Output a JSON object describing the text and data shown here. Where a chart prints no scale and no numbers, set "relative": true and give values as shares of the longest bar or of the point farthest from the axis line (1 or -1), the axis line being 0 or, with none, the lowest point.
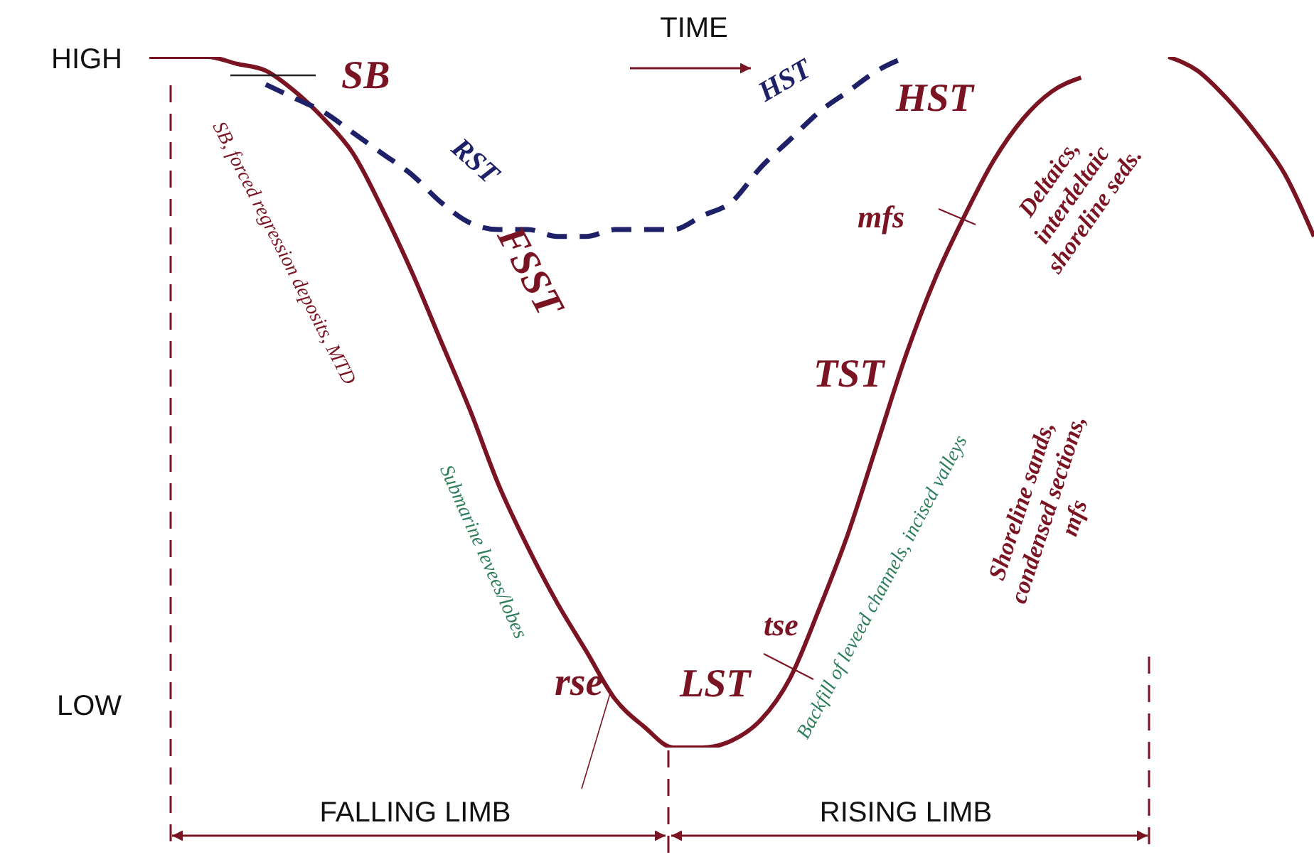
{
  "chart_data": {
    "type": "line",
    "relative": true,
    "xlabel": "TIME",
    "categories": [
      null,
      null,
      null,
      null,
      null,
      null,
      null,
      null,
      null,
      null,
      null,
      null,
      null,
      null,
      null,
      null,
      null,
      null,
      null,
      null,
      null,
      null,
      null,
      null,
      null,
      null,
      null,
      null,
      null,
      null,
      null,
      null,
      null,
      null,
      null,
      null,
      null,
      null,
      null,
      null,
      null
    ],
    "series": [
      {
        "color": "#7b1422",
        "line_style": "solid",
        "values": [
          1.0,
          1.0,
          1.0,
          0.99,
          0.98,
          0.95,
          0.91,
          0.86,
          0.78,
          0.69,
          0.59,
          0.49,
          0.38,
          0.29,
          0.21,
          0.14,
          0.07,
          0.03,
          0.0,
          0.0,
          0.01,
          0.04,
          0.1,
          0.2,
          0.31,
          0.44,
          0.57,
          0.68,
          0.77,
          0.85,
          0.91,
          0.95,
          0.97,
          null,
          null,
          1.0,
          0.98,
          0.94,
          0.89,
          0.83,
          0.74
        ]
      },
      {
        "color": "#1e2068",
        "line_style": "dashed",
        "values": [
          null,
          null,
          null,
          null,
          0.96,
          0.94,
          0.92,
          0.89,
          0.86,
          0.83,
          0.79,
          0.76,
          0.75,
          0.75,
          0.74,
          0.74,
          0.75,
          0.75,
          0.75,
          0.77,
          0.79,
          0.84,
          0.88,
          0.92,
          0.95,
          0.98,
          1.0,
          null,
          null,
          null,
          null,
          null,
          null,
          null,
          null,
          null,
          null,
          null,
          null,
          null,
          null
        ]
      }
    ],
    "marker": "none",
    "grid": false,
    "annotations": [
      "HIGH",
      "LOW",
      "SB",
      "SB, forced regression deposits, MTD",
      "RST",
      "FSST",
      "Submarine levees/lobes",
      "rse",
      "LST",
      "tse",
      "Backfill of leveed channels, incised valleys",
      "TST",
      "mfs",
      "HST",
      "HST",
      "Deltaics,\ninterdeltaic\nshoreline seds.",
      "Shoreline sands,\ncondensed sections,\nmfs",
      "FALLING LIMB",
      "RISING LIMB"
    ]
  }
}
